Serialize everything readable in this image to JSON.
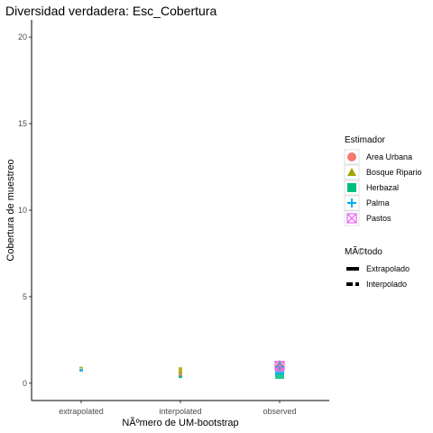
{
  "chart_data": {
    "type": "scatter",
    "title": "Diversidad verdadera: Esc_Cobertura",
    "xlabel": "NÃºmero de UM-bootstrap",
    "ylabel": "Cobertura de muestreo",
    "categories": [
      "extrapolated",
      "interpolated",
      "observed"
    ],
    "ylim": [
      -1,
      21
    ],
    "yticks": [
      0,
      5,
      10,
      15,
      20
    ],
    "grid": false,
    "legend_position": "right",
    "color_legend": {
      "title": "Estimador",
      "items": [
        {
          "label": "Area Urbana",
          "color": "#F8766D",
          "shape": "circle"
        },
        {
          "label": "Bosque Ripario",
          "color": "#A3A500",
          "shape": "triangle"
        },
        {
          "label": "Herbazal",
          "color": "#00BF7D",
          "shape": "square"
        },
        {
          "label": "Palma",
          "color": "#00B0F6",
          "shape": "plus"
        },
        {
          "label": "Pastos",
          "color": "#E76BF3",
          "shape": "boxx"
        }
      ]
    },
    "linetype_legend": {
      "title": "MÃ©todo",
      "items": [
        {
          "label": "Extrapolado",
          "style": "solid"
        },
        {
          "label": "Interpolado",
          "style": "dashed"
        }
      ]
    },
    "series": [
      {
        "estimator": "Area Urbana",
        "category": "extrapolated",
        "low": 0.72,
        "high": 0.78
      },
      {
        "estimator": "Bosque Ripario",
        "category": "extrapolated",
        "low": 0.85,
        "high": 0.95
      },
      {
        "estimator": "Palma",
        "category": "extrapolated",
        "low": 0.68,
        "high": 0.82
      },
      {
        "estimator": "Area Urbana",
        "category": "interpolated",
        "low": 0.3,
        "high": 0.62
      },
      {
        "estimator": "Bosque Ripario",
        "category": "interpolated",
        "low": 0.55,
        "high": 0.92
      },
      {
        "estimator": "Herbazal",
        "category": "interpolated",
        "low": 0.3,
        "high": 0.45
      },
      {
        "estimator": "Herbazal",
        "category": "observed",
        "low": 0.25,
        "high": 0.6
      },
      {
        "estimator": "Palma",
        "category": "observed",
        "low": 0.5,
        "high": 0.7
      }
    ],
    "points": [
      {
        "estimator": "Area Urbana",
        "category": "observed",
        "y": 0.9
      },
      {
        "estimator": "Bosque Ripario",
        "category": "observed",
        "y": 1.1
      },
      {
        "estimator": "Palma",
        "category": "observed",
        "y": 0.95
      },
      {
        "estimator": "Pastos",
        "category": "observed",
        "y": 1.0
      }
    ]
  }
}
